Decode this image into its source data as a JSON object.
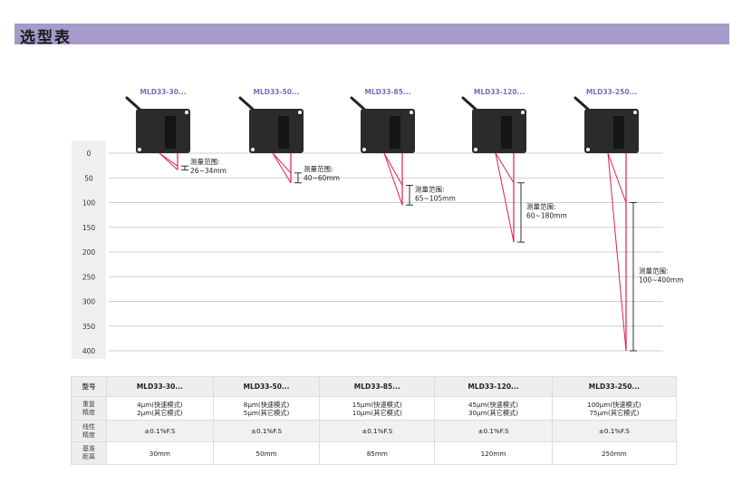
{
  "title": "选型表",
  "axis": {
    "ticks": [
      0,
      50,
      100,
      150,
      200,
      250,
      300,
      350,
      400
    ]
  },
  "colors": {
    "title_bar": "#a59ac9",
    "model_label": "#7b6bb8",
    "laser": "#e0204a"
  },
  "sensors": [
    {
      "model": "MLD33-30...",
      "range_label": "测量范围:",
      "range_text": "26~34mm",
      "near": 26,
      "far": 34
    },
    {
      "model": "MLD33-50...",
      "range_label": "测量范围:",
      "range_text": "40~60mm",
      "near": 40,
      "far": 60
    },
    {
      "model": "MLD33-85...",
      "range_label": "测量范围:",
      "range_text": "65~105mm",
      "near": 65,
      "far": 105
    },
    {
      "model": "MLD33-120...",
      "range_label": "测量范围:",
      "range_text": "60~180mm",
      "near": 60,
      "far": 180
    },
    {
      "model": "MLD33-250...",
      "range_label": "测量范围:",
      "range_text": "100~400mm",
      "near": 100,
      "far": 400
    }
  ],
  "table": {
    "row_headers": [
      "型号",
      "重复\n精度",
      "线性\n精度",
      "基准\n距离"
    ],
    "columns": [
      {
        "model": "MLD33-30...",
        "repeat1": "4μm(快速模式)",
        "repeat2": "2μm(其它模式)",
        "linear": "±0.1%F.S",
        "ref": "30mm"
      },
      {
        "model": "MLD33-50...",
        "repeat1": "8μm(快速模式)",
        "repeat2": "5μm(其它模式)",
        "linear": "±0.1%F.S",
        "ref": "50mm"
      },
      {
        "model": "MLD33-85...",
        "repeat1": "15μm(快速模式)",
        "repeat2": "10μm(其它模式)",
        "linear": "±0.1%F.S",
        "ref": "85mm"
      },
      {
        "model": "MLD33-120...",
        "repeat1": "45μm(快速模式)",
        "repeat2": "30μm(其它模式)",
        "linear": "±0.1%F.S",
        "ref": "120mm"
      },
      {
        "model": "MLD33-250...",
        "repeat1": "100μm(快速模式)",
        "repeat2": "75μm(其它模式)",
        "linear": "±0.1%F.S",
        "ref": "250mm"
      }
    ]
  }
}
